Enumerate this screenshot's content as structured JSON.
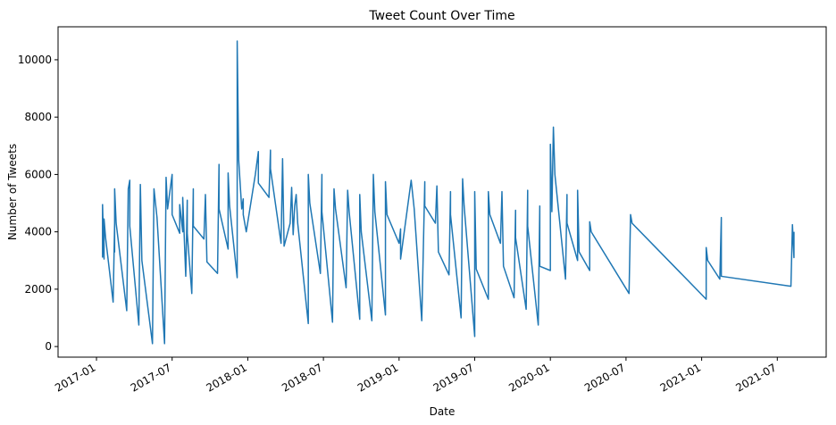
{
  "chart_data": {
    "type": "line",
    "title": "Tweet Count Over Time",
    "xlabel": "Date",
    "ylabel": "Number of Tweets",
    "color": "#1f77b4",
    "x": [
      2017.04,
      2017.04,
      2017.05,
      2017.05,
      2017.06,
      2017.11,
      2017.12,
      2017.12,
      2017.12,
      2017.13,
      2017.2,
      2017.21,
      2017.22,
      2017.22,
      2017.28,
      2017.29,
      2017.3,
      2017.37,
      2017.38,
      2017.4,
      2017.45,
      2017.46,
      2017.47,
      2017.5,
      2017.5,
      2017.55,
      2017.55,
      2017.57,
      2017.57,
      2017.59,
      2017.6,
      2017.6,
      2017.63,
      2017.64,
      2017.64,
      2017.71,
      2017.72,
      2017.73,
      2017.8,
      2017.81,
      2017.81,
      2017.87,
      2017.87,
      2017.88,
      2017.93,
      2017.93,
      2017.94,
      2017.96,
      2017.97,
      2017.97,
      2017.99,
      2018.05,
      2018.07,
      2018.07,
      2018.14,
      2018.15,
      2018.15,
      2018.22,
      2018.23,
      2018.24,
      2018.28,
      2018.29,
      2018.3,
      2018.31,
      2018.32,
      2018.33,
      2018.4,
      2018.4,
      2018.41,
      2018.48,
      2018.49,
      2018.49,
      2018.56,
      2018.57,
      2018.58,
      2018.65,
      2018.66,
      2018.67,
      2018.74,
      2018.74,
      2018.75,
      2018.82,
      2018.83,
      2018.84,
      2018.91,
      2018.91,
      2018.92,
      2019.0,
      2019.01,
      2019.01,
      2019.08,
      2019.1,
      2019.15,
      2019.17,
      2019.17,
      2019.24,
      2019.25,
      2019.26,
      2019.33,
      2019.34,
      2019.34,
      2019.41,
      2019.42,
      2019.43,
      2019.5,
      2019.5,
      2019.51,
      2019.59,
      2019.59,
      2019.6,
      2019.67,
      2019.68,
      2019.69,
      2019.76,
      2019.77,
      2019.77,
      2019.84,
      2019.85,
      2019.85,
      2019.92,
      2019.93,
      2019.93,
      2020.0,
      2020.0,
      2020.01,
      2020.02,
      2020.03,
      2020.1,
      2020.11,
      2020.11,
      2020.18,
      2020.18,
      2020.19,
      2020.26,
      2020.26,
      2020.27,
      2020.52,
      2020.53,
      2020.54,
      2021.03,
      2021.03,
      2021.04,
      2021.12,
      2021.13,
      2021.13,
      2021.59,
      2021.6,
      2021.61,
      2021.61
    ],
    "values": [
      3100,
      4950,
      3050,
      4450,
      3800,
      1550,
      4300,
      3300,
      5500,
      4300,
      1250,
      5500,
      5800,
      4200,
      750,
      5650,
      3000,
      100,
      5500,
      4500,
      100,
      5900,
      4800,
      6000,
      4600,
      3950,
      4950,
      4000,
      5200,
      2450,
      5100,
      3950,
      1850,
      5500,
      4200,
      3750,
      5300,
      2950,
      2550,
      6350,
      4800,
      3400,
      6050,
      4900,
      2400,
      10650,
      6500,
      4800,
      5150,
      4600,
      4000,
      6000,
      6800,
      5700,
      5200,
      6850,
      6200,
      3600,
      6550,
      3500,
      4300,
      5550,
      3900,
      4900,
      5300,
      4300,
      800,
      6000,
      5000,
      2550,
      6000,
      4700,
      850,
      5500,
      4800,
      2050,
      5450,
      4700,
      950,
      5300,
      4000,
      900,
      6000,
      4700,
      1100,
      5750,
      4600,
      3600,
      4100,
      3050,
      5800,
      4800,
      900,
      5750,
      4900,
      4300,
      5600,
      3300,
      2500,
      5400,
      4600,
      1000,
      5850,
      4900,
      350,
      5400,
      2700,
      1650,
      5400,
      4600,
      3600,
      5400,
      2800,
      1700,
      4750,
      3800,
      1300,
      5450,
      4200,
      750,
      4900,
      2800,
      2650,
      7050,
      4700,
      7650,
      6000,
      2350,
      5300,
      4300,
      3000,
      5450,
      3300,
      2650,
      4350,
      4000,
      1850,
      4600,
      4300,
      1650,
      3450,
      3000,
      2350,
      4500,
      2450,
      2100,
      4250,
      3100,
      4000
    ],
    "xlim": [
      2016.746,
      2021.823
    ],
    "ylim": [
      -370,
      11150
    ],
    "xticks": [
      {
        "value": 2017.0,
        "label": "2017-01"
      },
      {
        "value": 2017.5,
        "label": "2017-07"
      },
      {
        "value": 2018.0,
        "label": "2018-01"
      },
      {
        "value": 2018.5,
        "label": "2018-07"
      },
      {
        "value": 2019.0,
        "label": "2019-01"
      },
      {
        "value": 2019.5,
        "label": "2019-07"
      },
      {
        "value": 2020.0,
        "label": "2020-01"
      },
      {
        "value": 2020.5,
        "label": "2020-07"
      },
      {
        "value": 2021.0,
        "label": "2021-01"
      },
      {
        "value": 2021.5,
        "label": "2021-07"
      }
    ],
    "yticks": [
      0,
      2000,
      4000,
      6000,
      8000,
      10000
    ]
  }
}
